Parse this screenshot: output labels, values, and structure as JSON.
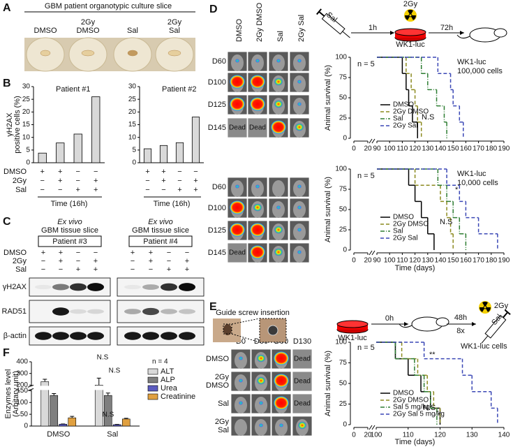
{
  "figure": {
    "panels": [
      "A",
      "B",
      "C",
      "D",
      "E",
      "F"
    ],
    "a": {
      "title": "GBM patient organotypic culture slice",
      "columns": [
        [
          "DMSO"
        ],
        [
          "2Gy",
          "DMSO"
        ],
        [
          "Sal"
        ],
        [
          "2Gy",
          "Sal"
        ]
      ]
    },
    "b": {
      "rows": [
        "DMSO",
        "2Gy",
        "Sal"
      ],
      "signs": [
        [
          "+",
          "+",
          "−",
          "−"
        ],
        [
          "−",
          "+",
          "−",
          "+"
        ],
        [
          "−",
          "−",
          "+",
          "+"
        ]
      ],
      "xlabel": "Time (16h)"
    },
    "c": {
      "groups": [
        {
          "title1": "Ex vivo",
          "title2": "GBM tissue slice",
          "patient": "Patient #3"
        },
        {
          "title1": "Ex vivo",
          "title2": "GBM tissue slice",
          "patient": "Patient #4"
        }
      ],
      "rows": [
        "DMSO",
        "2Gy",
        "Sal"
      ],
      "signs": [
        [
          "+",
          "+",
          "−",
          "−"
        ],
        [
          "−",
          "+",
          "−",
          "+"
        ],
        [
          "−",
          "−",
          "+",
          "+"
        ]
      ],
      "proteins": [
        "γH2AX",
        "RAD51",
        "β-actin"
      ]
    },
    "d": {
      "columns": [
        "DMSO",
        "2Gy DMSO",
        "Sal",
        "2Gy Sal"
      ],
      "rows": [
        "D60",
        "D100",
        "D125",
        "D145"
      ],
      "dead": "Dead",
      "schematic": {
        "drug": "Sal",
        "t1": "1h",
        "dose": "2Gy",
        "cells": "WK1-luc",
        "t2": "72h"
      }
    },
    "e": {
      "title": "Guide screw insertion",
      "columns": [
        "D0",
        "D60",
        "D90",
        "D130"
      ],
      "rows": [
        [
          "DMSO"
        ],
        [
          "2Gy",
          "DMSO"
        ],
        [
          "Sal"
        ],
        [
          "2Gy",
          "Sal"
        ]
      ],
      "dead": "Dead",
      "schematic": {
        "cells": "WK1-luc",
        "t1": "0h",
        "t2": "48h",
        "repeat": "8x",
        "dose": "2Gy",
        "drug": "Sal"
      }
    }
  },
  "chart_data": [
    {
      "type": "bar",
      "title": "Patient #1",
      "ylabel": [
        "γH2AX",
        "positive cells (%)"
      ],
      "values": [
        3.8,
        7.8,
        11.3,
        26
      ],
      "color": "#d9d9d9",
      "ylim": [
        0,
        30
      ],
      "yticks": [
        0,
        5,
        10,
        15,
        20,
        25,
        30
      ]
    },
    {
      "type": "bar",
      "title": "Patient #2",
      "values": [
        5.5,
        6.8,
        7.9,
        18
      ],
      "color": "#d9d9d9",
      "ylim": [
        0,
        30
      ],
      "yticks": [
        0,
        5,
        10,
        15,
        20,
        25,
        30
      ]
    },
    {
      "type": "groupedbar",
      "ylabel": [
        "Enzymes level",
        "(Arbitary unit)"
      ],
      "categories": [
        "DMSO",
        "Sal"
      ],
      "annotations": [
        "n = 4",
        "N.S",
        "N.S",
        "N.S"
      ],
      "ylim": [
        0,
        400
      ],
      "ybreak": [
        150,
        200
      ],
      "yticks": [
        0,
        50,
        100,
        150,
        200,
        300,
        400
      ],
      "series": [
        {
          "name": "ALT",
          "color": "#d9d9d9",
          "values": [
            230,
            200
          ],
          "errors": [
            20,
            60
          ]
        },
        {
          "name": "ALP",
          "color": "#7f7f7f",
          "values": [
            130,
            130
          ],
          "errors": [
            8,
            10
          ]
        },
        {
          "name": "Urea",
          "color": "#5b5bbf",
          "values": [
            8,
            6
          ],
          "errors": [
            1,
            1
          ]
        },
        {
          "name": "Creatinine",
          "color": "#e0a040",
          "values": [
            35,
            30
          ],
          "errors": [
            6,
            3
          ]
        }
      ]
    },
    {
      "type": "step",
      "ylabel": "Animal survival (%)",
      "annotations": [
        "n = 5",
        "WK1-luc",
        "100,000 cells",
        "N.S"
      ],
      "xlim": [
        0,
        190
      ],
      "xbreak": [
        20,
        90
      ],
      "xticks": [
        0,
        20,
        90,
        100,
        110,
        120,
        130,
        140,
        150,
        160,
        170,
        180,
        190
      ],
      "ylim": [
        0,
        100
      ],
      "yticks": [
        0,
        25,
        50,
        75,
        100
      ],
      "legend": "lower left",
      "series": [
        {
          "name": "DMSO",
          "color": "#000000",
          "dash": "solid",
          "x": [
            0,
            110,
            113,
            115,
            118,
            122
          ],
          "values": [
            100,
            80,
            60,
            40,
            20,
            0
          ]
        },
        {
          "name": "2Gy DMSO",
          "color": "#8c8a1f",
          "dash": "dashed",
          "x": [
            0,
            113,
            117,
            120,
            122,
            125
          ],
          "values": [
            100,
            80,
            60,
            40,
            20,
            0
          ]
        },
        {
          "name": "Sal",
          "color": "#2e7d32",
          "dash": "dashdot",
          "x": [
            0,
            125,
            130,
            137,
            143,
            145
          ],
          "values": [
            100,
            80,
            60,
            40,
            20,
            0
          ]
        },
        {
          "name": "2Gy Sal",
          "color": "#3a47b5",
          "dash": "dashed",
          "x": [
            0,
            138,
            148,
            150,
            155,
            158
          ],
          "values": [
            100,
            80,
            60,
            40,
            20,
            0
          ]
        }
      ]
    },
    {
      "type": "step",
      "ylabel": "Animal survival (%)",
      "xlabel": "Time (days)",
      "annotations": [
        "n = 5",
        "WK1-luc",
        "10,000 cells",
        "*",
        "N.S"
      ],
      "xlim": [
        0,
        190
      ],
      "xbreak": [
        20,
        90
      ],
      "xticks": [
        0,
        20,
        90,
        100,
        110,
        120,
        130,
        140,
        150,
        160,
        170,
        180,
        190
      ],
      "ylim": [
        0,
        100
      ],
      "yticks": [
        0,
        25,
        50,
        75,
        100
      ],
      "legend": "lower left",
      "series": [
        {
          "name": "DMSO",
          "color": "#000000",
          "dash": "solid",
          "x": [
            0,
            115,
            120,
            125,
            130,
            135
          ],
          "values": [
            100,
            80,
            60,
            40,
            20,
            0
          ]
        },
        {
          "name": "2Gy DMSO",
          "color": "#8c8a1f",
          "dash": "dashed",
          "x": [
            0,
            120,
            140,
            145,
            148,
            150
          ],
          "values": [
            100,
            80,
            60,
            40,
            20,
            0
          ]
        },
        {
          "name": "Sal",
          "color": "#2e7d32",
          "dash": "dashdot",
          "x": [
            0,
            138,
            145,
            150,
            155,
            160
          ],
          "values": [
            100,
            80,
            60,
            40,
            20,
            0
          ]
        },
        {
          "name": "2Gy Sal",
          "color": "#3a47b5",
          "dash": "dashed",
          "x": [
            0,
            145,
            155,
            160,
            170,
            185
          ],
          "values": [
            100,
            80,
            60,
            40,
            20,
            0
          ]
        }
      ]
    },
    {
      "type": "step",
      "ylabel": "Animal survival (%)",
      "xlabel": "Time (days)",
      "annotations": [
        "n = 5",
        "WK1-luc cells",
        "**",
        "N.S"
      ],
      "xlim": [
        0,
        140
      ],
      "xbreak": [
        20,
        100
      ],
      "xticks": [
        0,
        20,
        100,
        110,
        120,
        130,
        140
      ],
      "ylim": [
        0,
        100
      ],
      "yticks": [
        0,
        25,
        50,
        75,
        100
      ],
      "legend": "lower left",
      "series": [
        {
          "name": "DMSO",
          "color": "#000000",
          "dash": "solid",
          "x": [
            0,
            106,
            110,
            114,
            117,
            120
          ],
          "values": [
            100,
            80,
            60,
            40,
            20,
            0
          ]
        },
        {
          "name": "2Gy DMSO",
          "color": "#8c8a1f",
          "dash": "dashed",
          "x": [
            0,
            108,
            113,
            116,
            118,
            120
          ],
          "values": [
            100,
            80,
            60,
            40,
            20,
            0
          ]
        },
        {
          "name": "Sal 5 mg/kg",
          "color": "#2e7d32",
          "dash": "dashdot",
          "x": [
            0,
            106,
            112,
            115,
            117,
            119
          ],
          "values": [
            100,
            80,
            60,
            40,
            20,
            0
          ]
        },
        {
          "name": "2Gy Sal 5 mg/kg",
          "color": "#3a47b5",
          "dash": "dashed",
          "x": [
            0,
            115,
            127,
            130,
            136,
            138
          ],
          "values": [
            100,
            80,
            60,
            40,
            20,
            0
          ]
        }
      ]
    }
  ]
}
